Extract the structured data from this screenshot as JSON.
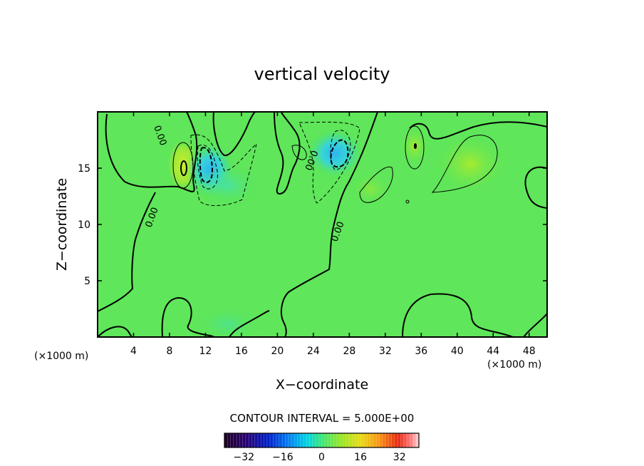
{
  "chart_data": {
    "type": "heatmap",
    "title": "vertical velocity",
    "xlabel": "X−coordinate",
    "ylabel": "Z−coordinate",
    "x_unit_left": "(×1000 m)",
    "x_unit_right": "(×1000 m)",
    "xlim": [
      0,
      50
    ],
    "ylim": [
      0,
      20
    ],
    "x_ticks": [
      4,
      8,
      12,
      16,
      20,
      24,
      28,
      32,
      36,
      40,
      44,
      48
    ],
    "y_ticks": [
      5,
      10,
      15
    ],
    "contour_interval_text": "CONTOUR INTERVAL = 5.000E+00",
    "contour_label": "0.00",
    "colorbar": {
      "range": [
        -40,
        40
      ],
      "ticks": [
        -32,
        -16,
        0,
        16,
        32
      ],
      "tick_labels": [
        "−32",
        "−16",
        "0",
        "16",
        "32"
      ]
    },
    "features": [
      {
        "x": 9.7,
        "z": 15.0,
        "value": 12,
        "kind": "positive"
      },
      {
        "x": 12.3,
        "z": 15.0,
        "value": -15,
        "kind": "negative"
      },
      {
        "x": 27.2,
        "z": 16.0,
        "value": -14,
        "kind": "negative"
      },
      {
        "x": 35.0,
        "z": 16.8,
        "value": 10,
        "kind": "positive"
      },
      {
        "x": 41.5,
        "z": 14.5,
        "value": 7,
        "kind": "positive"
      },
      {
        "x": 22.0,
        "z": 16.5,
        "value": 6,
        "kind": "positive"
      }
    ]
  }
}
